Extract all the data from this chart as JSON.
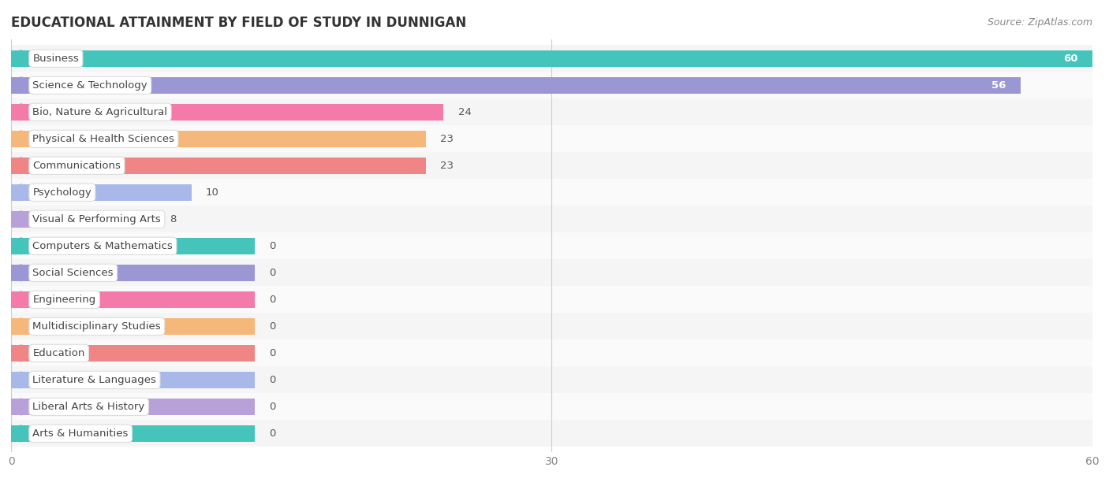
{
  "title": "EDUCATIONAL ATTAINMENT BY FIELD OF STUDY IN DUNNIGAN",
  "source": "Source: ZipAtlas.com",
  "categories": [
    "Business",
    "Science & Technology",
    "Bio, Nature & Agricultural",
    "Physical & Health Sciences",
    "Communications",
    "Psychology",
    "Visual & Performing Arts",
    "Computers & Mathematics",
    "Social Sciences",
    "Engineering",
    "Multidisciplinary Studies",
    "Education",
    "Literature & Languages",
    "Liberal Arts & History",
    "Arts & Humanities"
  ],
  "values": [
    60,
    56,
    24,
    23,
    23,
    10,
    8,
    0,
    0,
    0,
    0,
    0,
    0,
    0,
    0
  ],
  "bar_colors": [
    "#45C4BC",
    "#9B97D4",
    "#F47AAA",
    "#F5B87A",
    "#F08585",
    "#A8B8E8",
    "#B8A0D8",
    "#45C4BC",
    "#9B97D4",
    "#F47AAA",
    "#F5B87A",
    "#F08585",
    "#A8B8E8",
    "#B8A0D8",
    "#45C4BC"
  ],
  "xlim": [
    0,
    60
  ],
  "xticks": [
    0,
    30,
    60
  ],
  "background_color": "#ffffff",
  "row_bg_even": "#f5f5f5",
  "row_bg_odd": "#fafafa",
  "title_fontsize": 12,
  "source_fontsize": 9,
  "label_fontsize": 9.5,
  "value_fontsize": 9.5,
  "zero_bar_width": 13.5,
  "bar_height": 0.62
}
